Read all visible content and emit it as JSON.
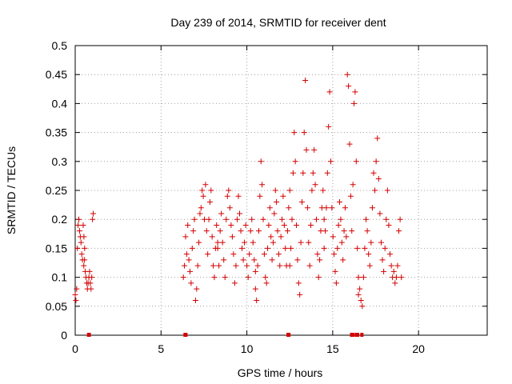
{
  "chart_data": {
    "type": "scatter",
    "title": "Day 239 of 2014, SRMTID for receiver dent",
    "xlabel": "GPS time / hours",
    "ylabel": "SRMTID / TECUs",
    "xlim": [
      0,
      24
    ],
    "ylim": [
      0,
      0.5
    ],
    "grid": true,
    "marker": "plus",
    "color": "#d40000",
    "x_ticks": [
      0,
      5,
      10,
      15,
      20
    ],
    "x_tick_labels": [
      "0",
      "5",
      "10",
      "15",
      "20"
    ],
    "y_ticks": [
      0,
      0.05,
      0.1,
      0.15,
      0.2,
      0.25,
      0.3,
      0.35,
      0.4,
      0.45,
      0.5
    ],
    "y_tick_labels": [
      "0",
      "0.05",
      "0.1",
      "0.15",
      "0.2",
      "0.25",
      "0.3",
      "0.35",
      "0.4",
      "0.45",
      "0.5"
    ],
    "series": [
      {
        "segments": [
          {
            "x_start": 0.0,
            "x_end": 0.55,
            "values": [
              0.07,
              0.06,
              0.08,
              0.15,
              0.19,
              0.2,
              0.18,
              0.17,
              0.16,
              0.14,
              0.13,
              0.19,
              0.17,
              0.15
            ]
          },
          {
            "x_start": 0.5,
            "x_end": 1.05,
            "values": [
              0.12,
              0.13,
              0.11,
              0.1,
              0.09,
              0.08,
              0.09,
              0.1,
              0.11,
              0.09,
              0.08,
              0.1,
              0.2,
              0.21
            ]
          },
          {
            "x_start": 6.3,
            "x_end": 8.3,
            "values": [
              0.1,
              0.12,
              0.17,
              0.14,
              0.19,
              0.13,
              0.11,
              0.09,
              0.15,
              0.18,
              0.2,
              0.06,
              0.08,
              0.12,
              0.16,
              0.21,
              0.22,
              0.25,
              0.24,
              0.2,
              0.26,
              0.18,
              0.14,
              0.2,
              0.23,
              0.25,
              0.17,
              0.12,
              0.1,
              0.15,
              0.19,
              0.16
            ]
          },
          {
            "x_start": 8.3,
            "x_end": 10.5,
            "values": [
              0.15,
              0.12,
              0.18,
              0.21,
              0.16,
              0.13,
              0.1,
              0.2,
              0.24,
              0.25,
              0.22,
              0.19,
              0.17,
              0.14,
              0.09,
              0.12,
              0.2,
              0.24,
              0.21,
              0.18,
              0.15,
              0.13,
              0.16,
              0.19,
              0.12,
              0.1,
              0.14,
              0.18,
              0.2,
              0.16,
              0.13,
              0.11
            ]
          },
          {
            "x_start": 10.5,
            "x_end": 12.5,
            "values": [
              0.08,
              0.06,
              0.12,
              0.18,
              0.24,
              0.3,
              0.26,
              0.2,
              0.14,
              0.1,
              0.09,
              0.15,
              0.19,
              0.22,
              0.17,
              0.13,
              0.16,
              0.21,
              0.25,
              0.23,
              0.18,
              0.14,
              0.12,
              0.17,
              0.2,
              0.24,
              0.19,
              0.15,
              0.12,
              0.18,
              0.22,
              0.25
            ]
          },
          {
            "x_start": 12.5,
            "x_end": 14.5,
            "values": [
              0.12,
              0.15,
              0.2,
              0.28,
              0.35,
              0.3,
              0.19,
              0.13,
              0.09,
              0.07,
              0.16,
              0.23,
              0.28,
              0.35,
              0.44,
              0.32,
              0.22,
              0.16,
              0.12,
              0.19,
              0.25,
              0.28,
              0.32,
              0.26,
              0.2,
              0.14,
              0.1,
              0.13,
              0.18,
              0.22,
              0.25,
              0.2
            ]
          },
          {
            "x_start": 14.5,
            "x_end": 16.5,
            "values": [
              0.15,
              0.18,
              0.22,
              0.28,
              0.36,
              0.42,
              0.3,
              0.22,
              0.17,
              0.14,
              0.11,
              0.09,
              0.15,
              0.19,
              0.23,
              0.2,
              0.16,
              0.13,
              0.18,
              0.22,
              0.17,
              0.45,
              0.43,
              0.33,
              0.24,
              0.18,
              0.26,
              0.4,
              0.42,
              0.3,
              0.15,
              0.07
            ]
          },
          {
            "x_start": 16.5,
            "x_end": 19.0,
            "values": [
              0.1,
              0.08,
              0.06,
              0.05,
              0.1,
              0.15,
              0.2,
              0.18,
              0.14,
              0.12,
              0.16,
              0.22,
              0.28,
              0.25,
              0.3,
              0.34,
              0.27,
              0.21,
              0.16,
              0.13,
              0.11,
              0.15,
              0.2,
              0.25,
              0.19,
              0.14,
              0.12,
              0.1,
              0.11,
              0.09,
              0.1,
              0.12,
              0.18,
              0.2,
              0.1
            ]
          }
        ]
      }
    ],
    "zero_markers_x": [
      0.78,
      0.82,
      6.4,
      6.45,
      12.4,
      12.45,
      16.1,
      16.2,
      16.4,
      16.45,
      16.7
    ]
  }
}
